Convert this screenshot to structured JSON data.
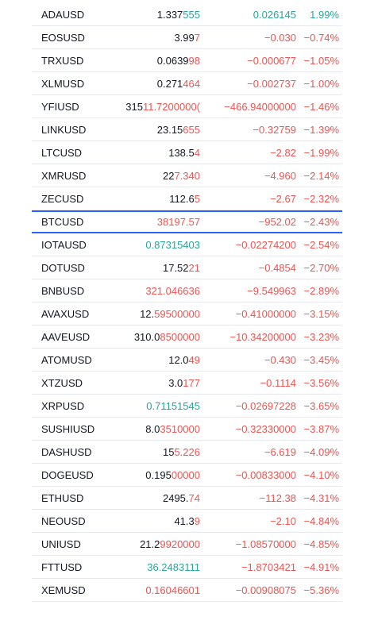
{
  "colors": {
    "up": "#26a69a",
    "down": "#ef5350",
    "text": "#131722",
    "selection": "#2962ff"
  },
  "rows": [
    {
      "symbol": "ADAUSD",
      "last_a": "1.337",
      "last_b": "555",
      "last_color": "default",
      "change": "0.026145",
      "change_pct": "1.99%",
      "dir": "up"
    },
    {
      "symbol": "EOSUSD",
      "last_a": "3.99",
      "last_b": "7",
      "last_color": "default",
      "change": "−0.030",
      "change_pct": "−0.74%",
      "dir": "down"
    },
    {
      "symbol": "TRXUSD",
      "last_a": "0.0639",
      "last_b": "98",
      "last_color": "default",
      "change": "−0.000677",
      "change_pct": "−1.05%",
      "dir": "down"
    },
    {
      "symbol": "XLMUSD",
      "last_a": "0.271",
      "last_b": "464",
      "last_color": "default",
      "change": "−0.002737",
      "change_pct": "−1.00%",
      "dir": "down"
    },
    {
      "symbol": "YFIUSD",
      "last_a": "315",
      "last_b": "11.7200000(",
      "last_color": "default",
      "change": "−466.94000000",
      "change_pct": "−1.46%",
      "dir": "down"
    },
    {
      "symbol": "LINKUSD",
      "last_a": "23.15",
      "last_b": "655",
      "last_color": "default",
      "change": "−0.32759",
      "change_pct": "−1.39%",
      "dir": "down"
    },
    {
      "symbol": "LTCUSD",
      "last_a": "138.5",
      "last_b": "4",
      "last_color": "default",
      "change": "−2.82",
      "change_pct": "−1.99%",
      "dir": "down"
    },
    {
      "symbol": "XMRUSD",
      "last_a": "22",
      "last_b": "7.340",
      "last_color": "default",
      "change": "−4.960",
      "change_pct": "−2.14%",
      "dir": "down"
    },
    {
      "symbol": "ZECUSD",
      "last_a": "112.6",
      "last_b": "5",
      "last_color": "default",
      "change": "−2.67",
      "change_pct": "−2.32%",
      "dir": "down"
    },
    {
      "symbol": "BTCUSD",
      "last_a": "38197.57",
      "last_b": "",
      "last_color": "red",
      "change": "−952.02",
      "change_pct": "−2.43%",
      "dir": "down",
      "highlight": true
    },
    {
      "symbol": "IOTAUSD",
      "last_a": "0.87315403",
      "last_b": "",
      "last_color": "green",
      "change": "−0.02274200",
      "change_pct": "−2.54%",
      "dir": "down"
    },
    {
      "symbol": "DOTUSD",
      "last_a": "17.52",
      "last_b": "21",
      "last_color": "default",
      "change": "−0.4854",
      "change_pct": "−2.70%",
      "dir": "down"
    },
    {
      "symbol": "BNBUSD",
      "last_a": "321.046636",
      "last_b": "",
      "last_color": "red",
      "change": "−9.549963",
      "change_pct": "−2.89%",
      "dir": "down"
    },
    {
      "symbol": "AVAXUSD",
      "last_a": "12.",
      "last_b": "59500000",
      "last_color": "default",
      "change": "−0.41000000",
      "change_pct": "−3.15%",
      "dir": "down"
    },
    {
      "symbol": "AAVEUSD",
      "last_a": "310.0",
      "last_b": "8500000",
      "last_color": "default",
      "change": "−10.34200000",
      "change_pct": "−3.23%",
      "dir": "down"
    },
    {
      "symbol": "ATOMUSD",
      "last_a": "12.0",
      "last_b": "49",
      "last_color": "default",
      "change": "−0.430",
      "change_pct": "−3.45%",
      "dir": "down"
    },
    {
      "symbol": "XTZUSD",
      "last_a": "3.0",
      "last_b": "177",
      "last_color": "default",
      "change": "−0.1114",
      "change_pct": "−3.56%",
      "dir": "down"
    },
    {
      "symbol": "XRPUSD",
      "last_a": "0.71151545",
      "last_b": "",
      "last_color": "green",
      "change": "−0.02697228",
      "change_pct": "−3.65%",
      "dir": "down"
    },
    {
      "symbol": "SUSHIUSD",
      "last_a": "8.0",
      "last_b": "3510000",
      "last_color": "default",
      "change": "−0.32330000",
      "change_pct": "−3.87%",
      "dir": "down"
    },
    {
      "symbol": "DASHUSD",
      "last_a": "15",
      "last_b": "5.226",
      "last_color": "default",
      "change": "−6.619",
      "change_pct": "−4.09%",
      "dir": "down"
    },
    {
      "symbol": "DOGEUSD",
      "last_a": "0.195",
      "last_b": "00000",
      "last_color": "default",
      "change": "−0.00833000",
      "change_pct": "−4.10%",
      "dir": "down"
    },
    {
      "symbol": "ETHUSD",
      "last_a": "2495.",
      "last_b": "74",
      "last_color": "default",
      "change": "−112.38",
      "change_pct": "−4.31%",
      "dir": "down"
    },
    {
      "symbol": "NEOUSD",
      "last_a": "41.3",
      "last_b": "9",
      "last_color": "default",
      "change": "−2.10",
      "change_pct": "−4.84%",
      "dir": "down"
    },
    {
      "symbol": "UNIUSD",
      "last_a": "21.2",
      "last_b": "9920000",
      "last_color": "default",
      "change": "−1.08570000",
      "change_pct": "−4.85%",
      "dir": "down"
    },
    {
      "symbol": "FTTUSD",
      "last_a": "36.2483111",
      "last_b": "",
      "last_color": "green",
      "change": "−1.8703421",
      "change_pct": "−4.91%",
      "dir": "down"
    },
    {
      "symbol": "XEMUSD",
      "last_a": "0.16046601",
      "last_b": "",
      "last_color": "red",
      "change": "−0.00908075",
      "change_pct": "−5.36%",
      "dir": "down"
    }
  ]
}
